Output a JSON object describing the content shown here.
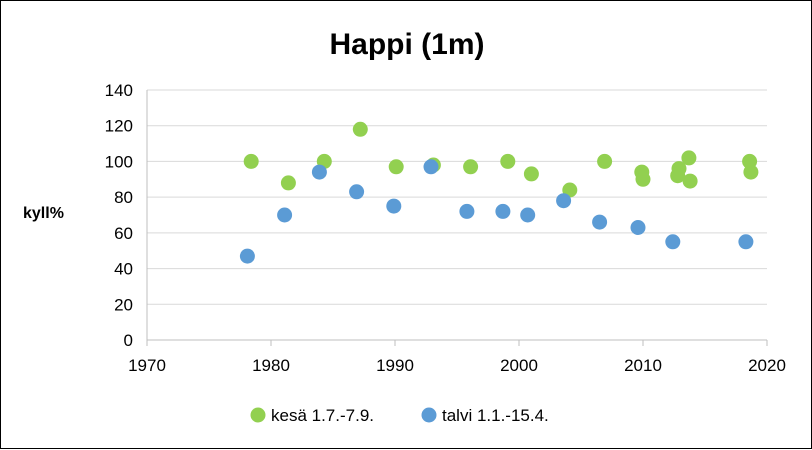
{
  "chart_data": {
    "type": "scatter",
    "title": "Happi (1m)",
    "xlabel": "",
    "ylabel": "kyll%",
    "xlim": [
      1970,
      2020
    ],
    "ylim": [
      0,
      140
    ],
    "xticks": [
      1970,
      1980,
      1990,
      2000,
      2010,
      2020
    ],
    "yticks": [
      0,
      20,
      40,
      60,
      80,
      100,
      120,
      140
    ],
    "grid": "horizontal",
    "legend_position": "bottom",
    "series": [
      {
        "name": "kesä 1.7.-7.9.",
        "color": "#92d050",
        "points": [
          [
            1978.4,
            100
          ],
          [
            1981.4,
            88
          ],
          [
            1984.3,
            100
          ],
          [
            1987.2,
            118
          ],
          [
            1990.1,
            97
          ],
          [
            1993.1,
            98
          ],
          [
            1996.1,
            97
          ],
          [
            1999.1,
            100
          ],
          [
            2001.0,
            93
          ],
          [
            2004.1,
            84
          ],
          [
            2006.9,
            100
          ],
          [
            2009.9,
            94
          ],
          [
            2010.0,
            90
          ],
          [
            2012.8,
            92
          ],
          [
            2012.9,
            96
          ],
          [
            2013.7,
            102
          ],
          [
            2013.8,
            89
          ],
          [
            2018.6,
            100
          ],
          [
            2018.7,
            94
          ]
        ]
      },
      {
        "name": "talvi 1.1.-15.4.",
        "color": "#5b9bd5",
        "points": [
          [
            1978.1,
            47
          ],
          [
            1981.1,
            70
          ],
          [
            1983.9,
            94
          ],
          [
            1986.9,
            83
          ],
          [
            1989.9,
            75
          ],
          [
            1992.9,
            97
          ],
          [
            1995.8,
            72
          ],
          [
            1998.7,
            72
          ],
          [
            2000.7,
            70
          ],
          [
            2003.6,
            78
          ],
          [
            2006.5,
            66
          ],
          [
            2009.6,
            63
          ],
          [
            2012.4,
            55
          ],
          [
            2018.3,
            55
          ]
        ]
      }
    ]
  }
}
